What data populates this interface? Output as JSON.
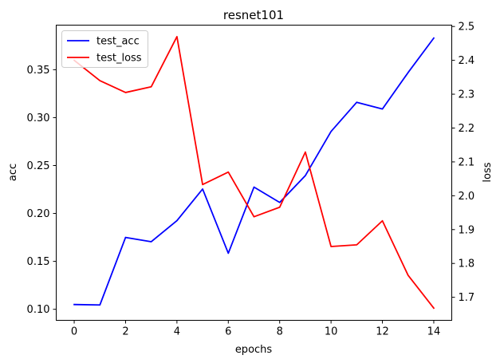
{
  "chart_data": {
    "type": "line",
    "title": "resnet101",
    "xlabel": "epochs",
    "ylabel_left": "acc",
    "ylabel_right": "loss",
    "xlim": [
      -0.7,
      14.7
    ],
    "ylim_left": [
      0.0885,
      0.3965
    ],
    "ylim_right": [
      1.632,
      2.504
    ],
    "x_ticks": [
      0,
      2,
      4,
      6,
      8,
      10,
      12,
      14
    ],
    "y_ticks_left": [
      0.1,
      0.15,
      0.2,
      0.25,
      0.3,
      0.35
    ],
    "y_ticks_right": [
      1.7,
      1.8,
      1.9,
      2.0,
      2.1,
      2.2,
      2.3,
      2.4,
      2.5
    ],
    "x": [
      0,
      1,
      2,
      3,
      4,
      5,
      6,
      7,
      8,
      9,
      10,
      11,
      12,
      13,
      14
    ],
    "series": [
      {
        "name": "test_acc",
        "axis": "left",
        "color": "#0000ff",
        "values": [
          0.105,
          0.1045,
          0.175,
          0.1705,
          0.1925,
          0.2255,
          0.1585,
          0.2275,
          0.2115,
          0.2395,
          0.2855,
          0.316,
          0.309,
          0.347,
          0.383
        ]
      },
      {
        "name": "test_loss",
        "axis": "right",
        "color": "#ff0000",
        "values": [
          2.4,
          2.34,
          2.305,
          2.322,
          2.47,
          2.033,
          2.07,
          1.938,
          1.966,
          2.129,
          1.85,
          1.855,
          1.926,
          1.765,
          1.668
        ]
      }
    ],
    "grid": false,
    "legend": "top-left"
  }
}
